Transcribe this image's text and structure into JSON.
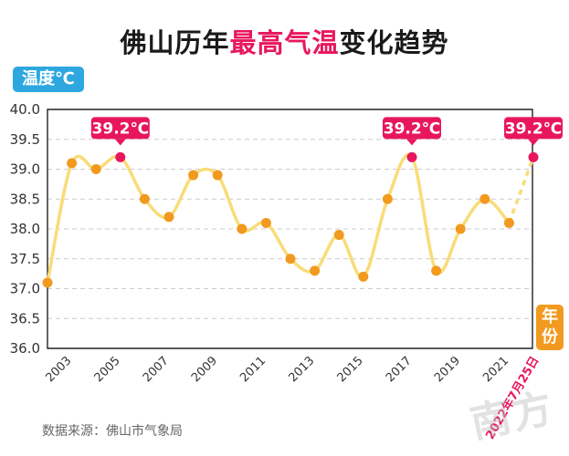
{
  "header": {
    "title_prefix": "佛山历年",
    "title_highlight": "最高气温",
    "title_suffix": "变化趋势"
  },
  "y_axis_badge": "温度℃",
  "x_axis_badge": "年份",
  "source": "数据来源：佛山市气象局",
  "watermark": "南方",
  "colors": {
    "line": "#f9dc78",
    "point": "#f19a1f",
    "peak": "#e8175d",
    "grid": "#cccccc",
    "y_badge": "#2ea7e0",
    "x_badge": "#f19a1f"
  },
  "chart_data": {
    "type": "line",
    "title": "佛山历年最高气温变化趋势",
    "ylabel": "温度℃",
    "xlabel": "年份",
    "ylim": [
      36.0,
      40.0
    ],
    "yticks": [
      "36.0",
      "36.5",
      "37.0",
      "37.5",
      "38.0",
      "38.5",
      "39.0",
      "39.5",
      "40.0"
    ],
    "xticks": [
      "2003",
      "2005",
      "2007",
      "2009",
      "2011",
      "2013",
      "2015",
      "2017",
      "2019",
      "2021"
    ],
    "x": [
      2002,
      2003,
      2004,
      2005,
      2006,
      2007,
      2008,
      2009,
      2010,
      2011,
      2012,
      2013,
      2014,
      2015,
      2016,
      2017,
      2018,
      2019,
      2020,
      2021
    ],
    "values": [
      37.1,
      39.1,
      39.0,
      39.2,
      38.5,
      38.2,
      38.9,
      38.9,
      38.0,
      38.1,
      37.5,
      37.3,
      37.9,
      37.2,
      38.5,
      39.2,
      37.3,
      38.0,
      38.5,
      38.1
    ],
    "projected": {
      "x": 2022,
      "value": 39.2,
      "label": "2022年7月25日"
    },
    "peak_labels": [
      {
        "x": 2005,
        "value": 39.2,
        "text": "39.2℃"
      },
      {
        "x": 2017,
        "value": 39.2,
        "text": "39.2℃"
      },
      {
        "x": 2022,
        "value": 39.2,
        "text": "39.2℃"
      }
    ],
    "grid": true
  }
}
